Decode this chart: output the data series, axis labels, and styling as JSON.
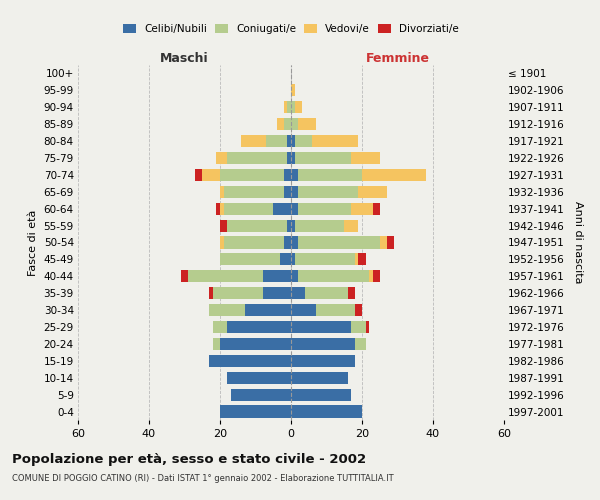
{
  "age_groups": [
    "0-4",
    "5-9",
    "10-14",
    "15-19",
    "20-24",
    "25-29",
    "30-34",
    "35-39",
    "40-44",
    "45-49",
    "50-54",
    "55-59",
    "60-64",
    "65-69",
    "70-74",
    "75-79",
    "80-84",
    "85-89",
    "90-94",
    "95-99",
    "100+"
  ],
  "birth_years": [
    "1997-2001",
    "1992-1996",
    "1987-1991",
    "1982-1986",
    "1977-1981",
    "1972-1976",
    "1967-1971",
    "1962-1966",
    "1957-1961",
    "1952-1956",
    "1947-1951",
    "1942-1946",
    "1937-1941",
    "1932-1936",
    "1927-1931",
    "1922-1926",
    "1917-1921",
    "1912-1916",
    "1907-1911",
    "1902-1906",
    "≤ 1901"
  ],
  "maschi": {
    "celibi": [
      20,
      17,
      18,
      23,
      20,
      18,
      13,
      8,
      8,
      3,
      2,
      1,
      5,
      2,
      2,
      1,
      1,
      0,
      0,
      0,
      0
    ],
    "coniugati": [
      0,
      0,
      0,
      0,
      2,
      4,
      10,
      14,
      21,
      17,
      17,
      17,
      14,
      17,
      18,
      17,
      6,
      2,
      1,
      0,
      0
    ],
    "vedovi": [
      0,
      0,
      0,
      0,
      0,
      0,
      0,
      0,
      0,
      0,
      1,
      0,
      1,
      1,
      5,
      3,
      7,
      2,
      1,
      0,
      0
    ],
    "divorziati": [
      0,
      0,
      0,
      0,
      0,
      0,
      0,
      1,
      2,
      0,
      0,
      2,
      1,
      0,
      2,
      0,
      0,
      0,
      0,
      0,
      0
    ]
  },
  "femmine": {
    "nubili": [
      20,
      17,
      16,
      18,
      18,
      17,
      7,
      4,
      2,
      1,
      2,
      1,
      2,
      2,
      2,
      1,
      1,
      0,
      0,
      0,
      0
    ],
    "coniugate": [
      0,
      0,
      0,
      0,
      3,
      4,
      11,
      12,
      20,
      17,
      23,
      14,
      15,
      17,
      18,
      16,
      5,
      2,
      1,
      0,
      0
    ],
    "vedove": [
      0,
      0,
      0,
      0,
      0,
      0,
      0,
      0,
      1,
      1,
      2,
      4,
      6,
      8,
      18,
      8,
      13,
      5,
      2,
      1,
      0
    ],
    "divorziate": [
      0,
      0,
      0,
      0,
      0,
      1,
      2,
      2,
      2,
      2,
      2,
      0,
      2,
      0,
      0,
      0,
      0,
      0,
      0,
      0,
      0
    ]
  },
  "colors": {
    "celibi_nubili": "#3a6ea5",
    "coniugati": "#b5cc8e",
    "vedovi": "#f5c460",
    "divorziati": "#cc2222"
  },
  "title": "Popolazione per età, sesso e stato civile - 2002",
  "subtitle": "COMUNE DI POGGIO CATINO (RI) - Dati ISTAT 1° gennaio 2002 - Elaborazione TUTTITALIA.IT",
  "label_maschi": "Maschi",
  "label_femmine": "Femmine",
  "ylabel_left": "Fasce di età",
  "ylabel_right": "Anni di nascita",
  "xlim": 60,
  "xtick_step": 20,
  "background_color": "#f0f0eb",
  "grid_color": "#bbbbbb",
  "bar_height": 0.72
}
